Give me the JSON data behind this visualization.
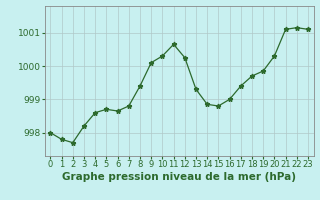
{
  "hours": [
    0,
    1,
    2,
    3,
    4,
    5,
    6,
    7,
    8,
    9,
    10,
    11,
    12,
    13,
    14,
    15,
    16,
    17,
    18,
    19,
    20,
    21,
    22,
    23
  ],
  "pressure": [
    998.0,
    997.8,
    997.7,
    998.2,
    998.6,
    998.7,
    998.65,
    998.8,
    999.4,
    1000.1,
    1000.3,
    1000.65,
    1000.25,
    999.3,
    998.85,
    998.8,
    999.0,
    999.4,
    999.7,
    999.85,
    1000.3,
    1001.1,
    1001.15,
    1001.1
  ],
  "line_color": "#2d6a2d",
  "marker": "*",
  "marker_size": 3.5,
  "bg_color": "#c8f0f0",
  "grid_color": "#b0c8c8",
  "title": "Graphe pression niveau de la mer (hPa)",
  "title_fontsize": 7.5,
  "xlabel_ticks": [
    "0",
    "1",
    "2",
    "3",
    "4",
    "5",
    "6",
    "7",
    "8",
    "9",
    "10",
    "11",
    "12",
    "13",
    "14",
    "15",
    "16",
    "17",
    "18",
    "19",
    "20",
    "21",
    "22",
    "23"
  ],
  "yticks": [
    998,
    999,
    1000,
    1001
  ],
  "ylim": [
    997.3,
    1001.8
  ],
  "xlim": [
    -0.5,
    23.5
  ],
  "tick_color": "#2d6a2d",
  "tick_fontsize": 6.5,
  "border_color": "#888888"
}
